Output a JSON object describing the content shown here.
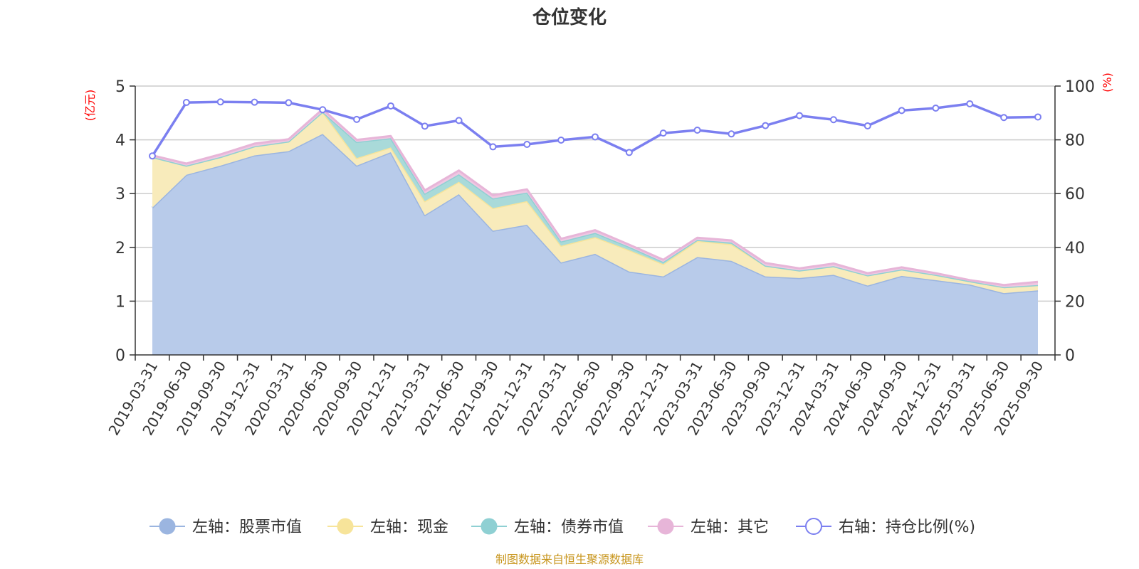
{
  "chart_data": {
    "type": "area",
    "title": "仓位变化",
    "left_axis": {
      "unit_label": "(亿元)",
      "ylim": [
        0,
        5
      ],
      "ticks": [
        "0",
        "1",
        "2",
        "3",
        "4",
        "5"
      ]
    },
    "right_axis": {
      "unit_label": "(%)",
      "ylim": [
        0,
        100
      ],
      "ticks": [
        "0",
        "20",
        "40",
        "60",
        "80",
        "100"
      ]
    },
    "categories": [
      "2019-03-31",
      "2019-06-30",
      "2019-09-30",
      "2019-12-31",
      "2020-03-31",
      "2020-06-30",
      "2020-09-30",
      "2020-12-31",
      "2021-03-31",
      "2021-06-30",
      "2021-09-30",
      "2021-12-31",
      "2022-03-31",
      "2022-06-30",
      "2022-09-30",
      "2022-12-31",
      "2023-03-31",
      "2023-06-30",
      "2023-09-30",
      "2023-12-31",
      "2024-03-31",
      "2024-06-30",
      "2024-09-30",
      "2024-12-31",
      "2025-03-31",
      "2025-06-30",
      "2025-09-30"
    ],
    "series": [
      {
        "name": "左轴：股票市值",
        "axis": "left",
        "type": "area",
        "color": "#9bb5e0",
        "fill": "#b8cbea",
        "values": [
          2.74,
          3.35,
          3.52,
          3.71,
          3.79,
          4.11,
          3.52,
          3.77,
          2.6,
          2.99,
          2.31,
          2.42,
          1.72,
          1.88,
          1.55,
          1.46,
          1.82,
          1.75,
          1.46,
          1.43,
          1.49,
          1.29,
          1.47,
          1.39,
          1.31,
          1.15,
          1.2
        ]
      },
      {
        "name": "左轴：现金",
        "axis": "left",
        "type": "area",
        "color": "#f7e49a",
        "fill": "#f8ebbb",
        "values": [
          0.94,
          0.17,
          0.16,
          0.17,
          0.18,
          0.41,
          0.14,
          0.09,
          0.26,
          0.23,
          0.42,
          0.44,
          0.31,
          0.31,
          0.4,
          0.23,
          0.3,
          0.31,
          0.2,
          0.14,
          0.16,
          0.19,
          0.12,
          0.1,
          0.06,
          0.11,
          0.1
        ]
      },
      {
        "name": "左轴：债券市值",
        "axis": "left",
        "type": "area",
        "color": "#8fd0d3",
        "fill": "#a9dad9",
        "values": [
          0,
          0,
          0,
          0,
          0,
          0,
          0.3,
          0.17,
          0.14,
          0.14,
          0.18,
          0.16,
          0.08,
          0.08,
          0.06,
          0.04,
          0.02,
          0.03,
          0,
          0,
          0,
          0,
          0,
          0,
          0,
          0,
          0
        ]
      },
      {
        "name": "左轴：其它",
        "axis": "left",
        "type": "area",
        "color": "#e7b5d8",
        "fill": "#efc8e2",
        "values": [
          0.03,
          0.04,
          0.05,
          0.05,
          0.04,
          0.05,
          0.04,
          0.04,
          0.06,
          0.07,
          0.06,
          0.06,
          0.05,
          0.05,
          0.04,
          0.04,
          0.04,
          0.04,
          0.05,
          0.04,
          0.05,
          0.04,
          0.04,
          0.03,
          0.02,
          0.04,
          0.06
        ]
      },
      {
        "name": "右轴：持仓比例(%)",
        "axis": "right",
        "type": "line",
        "color": "#7b7ff0",
        "values": [
          74.0,
          93.9,
          94.1,
          94.0,
          93.8,
          91.2,
          87.6,
          92.6,
          85.1,
          87.2,
          77.4,
          78.3,
          79.9,
          81.1,
          75.3,
          82.5,
          83.6,
          82.2,
          85.3,
          89.0,
          87.5,
          85.2,
          90.9,
          91.8,
          93.4,
          88.3,
          88.5
        ]
      }
    ],
    "legend_position": "bottom-center",
    "source_note": "制图数据来自恒生聚源数据库"
  }
}
